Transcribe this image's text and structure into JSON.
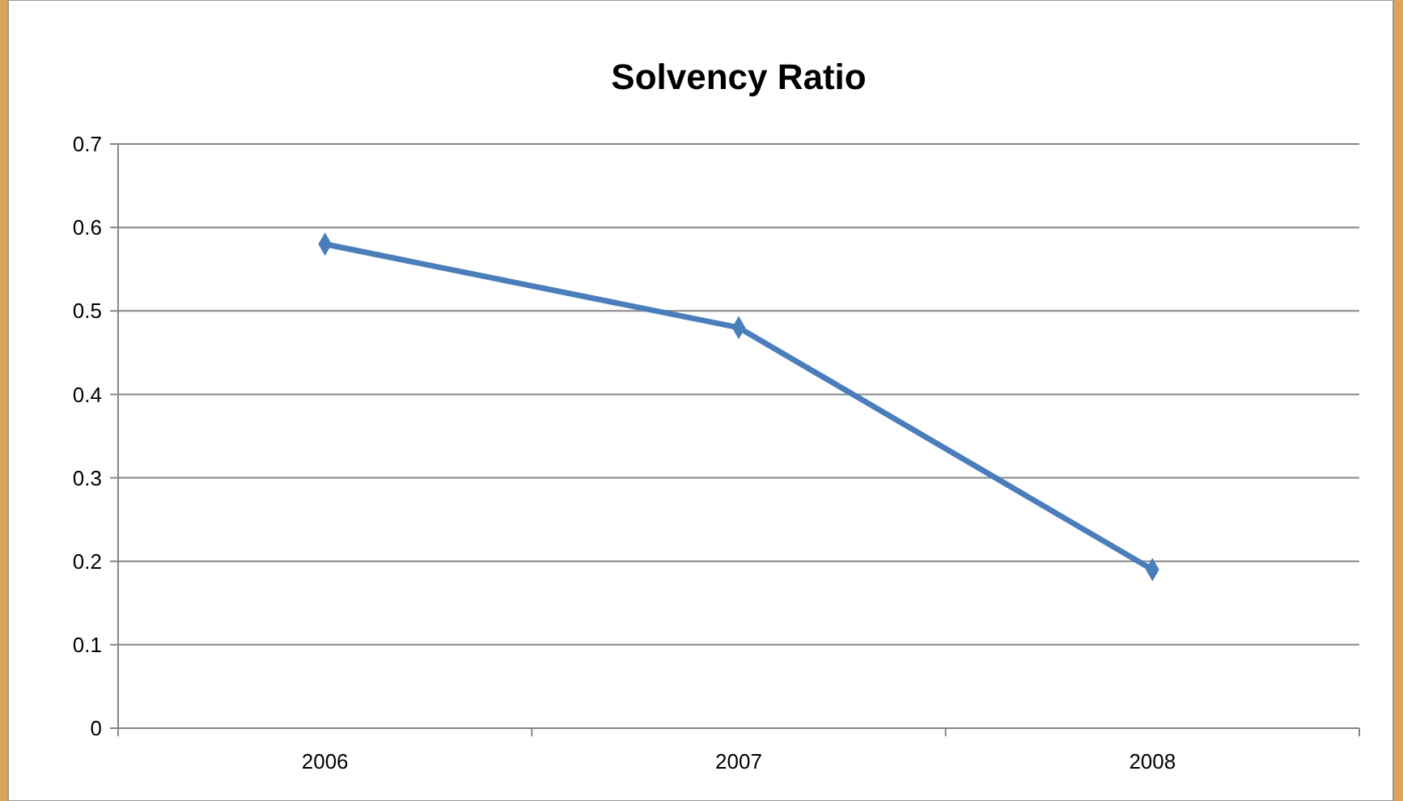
{
  "chart_data": {
    "type": "line",
    "title": "Solvency Ratio",
    "categories": [
      "2006",
      "2007",
      "2008"
    ],
    "series": [
      {
        "color": "#4a7ebb",
        "values": [
          0.58,
          0.48,
          0.19
        ]
      }
    ],
    "ylim": [
      0,
      0.7
    ],
    "yticks": [
      0,
      0.1,
      0.2,
      0.3,
      0.4,
      0.5,
      0.6,
      0.7
    ],
    "grid": "y",
    "marker": "diamond",
    "line_style": "solid"
  }
}
